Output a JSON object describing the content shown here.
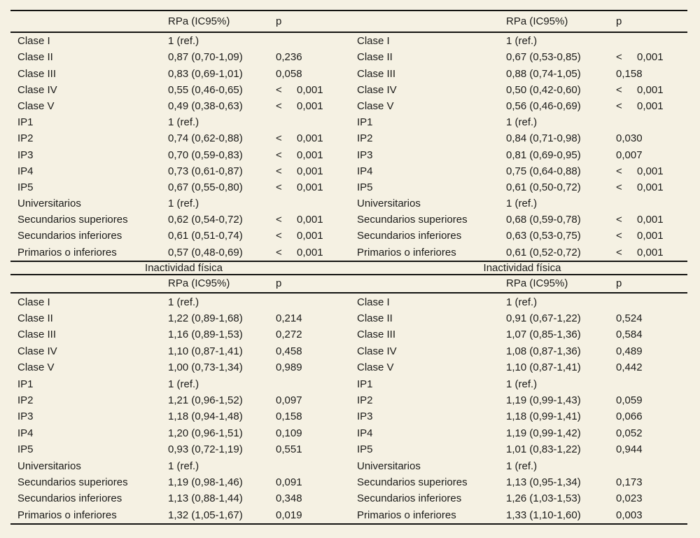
{
  "page": {
    "background_color": "#f5f1e3",
    "text_color": "#1b1b19",
    "rule_color": "#141412"
  },
  "tables": [
    {
      "panels": [
        {
          "title": "",
          "col_headers": {
            "rpa": "RPa (IC95%)",
            "p": "p"
          },
          "rows": [
            {
              "label": "Clase I",
              "rpa": "1 (ref.)",
              "p": ""
            },
            {
              "label": "Clase II",
              "rpa": "0,87 (0,70-1,09)",
              "p": "0,236"
            },
            {
              "label": "Clase III",
              "rpa": "0,83 (0,69-1,01)",
              "p": "0,058"
            },
            {
              "label": "Clase IV",
              "rpa": "0,55 (0,46-0,65)",
              "p": "< 0,001"
            },
            {
              "label": "Clase V",
              "rpa": "0,49 (0,38-0,63)",
              "p": "< 0,001"
            },
            {
              "label": "IP1",
              "rpa": "1 (ref.)",
              "p": ""
            },
            {
              "label": "IP2",
              "rpa": "0,74 (0,62-0,88)",
              "p": "< 0,001"
            },
            {
              "label": "IP3",
              "rpa": "0,70 (0,59-0,83)",
              "p": "< 0,001"
            },
            {
              "label": "IP4",
              "rpa": "0,73 (0,61-0,87)",
              "p": "< 0,001"
            },
            {
              "label": "IP5",
              "rpa": "0,67 (0,55-0,80)",
              "p": "< 0,001"
            },
            {
              "label": "Universitarios",
              "rpa": "1 (ref.)",
              "p": ""
            },
            {
              "label": "Secundarios superiores",
              "rpa": "0,62 (0,54-0,72)",
              "p": "< 0,001"
            },
            {
              "label": "Secundarios inferiores",
              "rpa": "0,61 (0,51-0,74)",
              "p": "< 0,001"
            },
            {
              "label": "Primarios o inferiores",
              "rpa": "0,57 (0,48-0,69)",
              "p": "< 0,001"
            }
          ]
        },
        {
          "title": "",
          "col_headers": {
            "rpa": "RPa (IC95%)",
            "p": "p"
          },
          "rows": [
            {
              "label": "Clase I",
              "rpa": "1 (ref.)",
              "p": ""
            },
            {
              "label": "Clase II",
              "rpa": "0,67 (0,53-0,85)",
              "p": "< 0,001"
            },
            {
              "label": "Clase III",
              "rpa": "0,88 (0,74-1,05)",
              "p": "0,158"
            },
            {
              "label": "Clase IV",
              "rpa": "0,50 (0,42-0,60)",
              "p": "< 0,001"
            },
            {
              "label": "Clase V",
              "rpa": "0,56 (0,46-0,69)",
              "p": "< 0,001"
            },
            {
              "label": "IP1",
              "rpa": "1 (ref.)",
              "p": ""
            },
            {
              "label": "IP2",
              "rpa": "0,84 (0,71-0,98)",
              "p": "0,030"
            },
            {
              "label": "IP3",
              "rpa": "0,81 (0,69-0,95)",
              "p": "0,007"
            },
            {
              "label": "IP4",
              "rpa": "0,75 (0,64-0,88)",
              "p": "< 0,001"
            },
            {
              "label": "IP5",
              "rpa": "0,61 (0,50-0,72)",
              "p": "< 0,001"
            },
            {
              "label": "Universitarios",
              "rpa": "1 (ref.)",
              "p": ""
            },
            {
              "label": "Secundarios superiores",
              "rpa": "0,68 (0,59-0,78)",
              "p": "< 0,001"
            },
            {
              "label": "Secundarios inferiores",
              "rpa": "0,63 (0,53-0,75)",
              "p": "< 0,001"
            },
            {
              "label": "Primarios o inferiores",
              "rpa": "0,61 (0,52-0,72)",
              "p": "< 0,001"
            }
          ]
        }
      ]
    },
    {
      "panels": [
        {
          "title": "Inactividad física",
          "col_headers": {
            "rpa": "RPa (IC95%)",
            "p": "p"
          },
          "rows": [
            {
              "label": "Clase I",
              "rpa": "1 (ref.)",
              "p": ""
            },
            {
              "label": "Clase II",
              "rpa": "1,22 (0,89-1,68)",
              "p": "0,214"
            },
            {
              "label": "Clase III",
              "rpa": "1,16 (0,89-1,53)",
              "p": "0,272"
            },
            {
              "label": "Clase IV",
              "rpa": "1,10 (0,87-1,41)",
              "p": "0,458"
            },
            {
              "label": "Clase V",
              "rpa": "1,00 (0,73-1,34)",
              "p": "0,989"
            },
            {
              "label": "IP1",
              "rpa": "1 (ref.)",
              "p": ""
            },
            {
              "label": "IP2",
              "rpa": "1,21 (0,96-1,52)",
              "p": "0,097"
            },
            {
              "label": "IP3",
              "rpa": "1,18 (0,94-1,48)",
              "p": "0,158"
            },
            {
              "label": "IP4",
              "rpa": "1,20 (0,96-1,51)",
              "p": "0,109"
            },
            {
              "label": "IP5",
              "rpa": "0,93 (0,72-1,19)",
              "p": "0,551"
            },
            {
              "label": "Universitarios",
              "rpa": "1 (ref.)",
              "p": ""
            },
            {
              "label": "Secundarios superiores",
              "rpa": "1,19 (0,98-1,46)",
              "p": "0,091"
            },
            {
              "label": "Secundarios inferiores",
              "rpa": "1,13 (0,88-1,44)",
              "p": "0,348"
            },
            {
              "label": "Primarios o inferiores",
              "rpa": "1,32 (1,05-1,67)",
              "p": "0,019"
            }
          ]
        },
        {
          "title": "Inactividad física",
          "col_headers": {
            "rpa": "RPa (IC95%)",
            "p": "p"
          },
          "rows": [
            {
              "label": "Clase I",
              "rpa": "1 (ref.)",
              "p": ""
            },
            {
              "label": "Clase II",
              "rpa": "0,91 (0,67-1,22)",
              "p": "0,524"
            },
            {
              "label": "Clase III",
              "rpa": "1,07 (0,85-1,36)",
              "p": "0,584"
            },
            {
              "label": "Clase IV",
              "rpa": "1,08 (0,87-1,36)",
              "p": "0,489"
            },
            {
              "label": "Clase V",
              "rpa": "1,10 (0,87-1,41)",
              "p": "0,442"
            },
            {
              "label": "IP1",
              "rpa": "1 (ref.)",
              "p": ""
            },
            {
              "label": "IP2",
              "rpa": "1,19 (0,99-1,43)",
              "p": "0,059"
            },
            {
              "label": "IP3",
              "rpa": "1,18 (0,99-1,41)",
              "p": "0,066"
            },
            {
              "label": "IP4",
              "rpa": "1,19 (0,99-1,42)",
              "p": "0,052"
            },
            {
              "label": "IP5",
              "rpa": "1,01 (0,83-1,22)",
              "p": "0,944"
            },
            {
              "label": "Universitarios",
              "rpa": "1 (ref.)",
              "p": ""
            },
            {
              "label": "Secundarios superiores",
              "rpa": "1,13 (0,95-1,34)",
              "p": "0,173"
            },
            {
              "label": "Secundarios inferiores",
              "rpa": "1,26 (1,03-1,53)",
              "p": "0,023"
            },
            {
              "label": "Primarios o inferiores",
              "rpa": "1,33 (1,10-1,60)",
              "p": "0,003"
            }
          ]
        }
      ]
    }
  ]
}
